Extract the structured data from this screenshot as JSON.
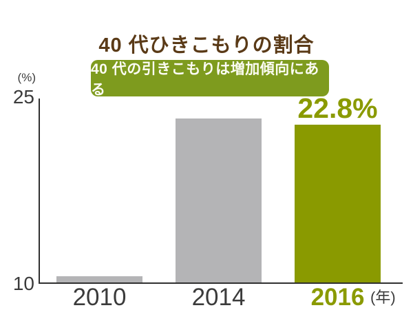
{
  "title": {
    "text": "40 代ひきこもりの割合"
  },
  "badge": {
    "text": "40 代の引きこもりは増加傾向にある"
  },
  "axis": {
    "y_unit": "(%)",
    "y_max_label": "25",
    "y_min_label": "10",
    "x_unit": "(年)"
  },
  "chart_data": {
    "type": "bar",
    "title": "40 代ひきこもりの割合",
    "subtitle_badge": "40 代の引きこもりは増加傾向にある",
    "categories": [
      "2010",
      "2014",
      "2016"
    ],
    "values": [
      10.5,
      23.3,
      22.8
    ],
    "value_labels": [
      "",
      "",
      "22.8%"
    ],
    "labeled_values_note": "only 2016 bar carries an on-chart data label; 2010 and 2014 estimated from axis scale",
    "xlabel": "年",
    "ylabel": "%",
    "ylim": [
      10,
      25
    ],
    "y_ticks": [
      10,
      25
    ],
    "grid": false,
    "legend": false,
    "highlight_category": "2016",
    "bar_colors": [
      "#b4b4b6",
      "#b4b4b6",
      "#8a9a00"
    ]
  },
  "colors": {
    "title_color": "#5a3a17",
    "badge_bg": "#7e9b1e",
    "badge_text": "#fcfcf4",
    "bar_gray": "#b4b4b6",
    "bar_green": "#8a9a00",
    "text_dark": "#3b3b3b",
    "axis_color": "#2f2f2f",
    "background": "#ffffff"
  }
}
